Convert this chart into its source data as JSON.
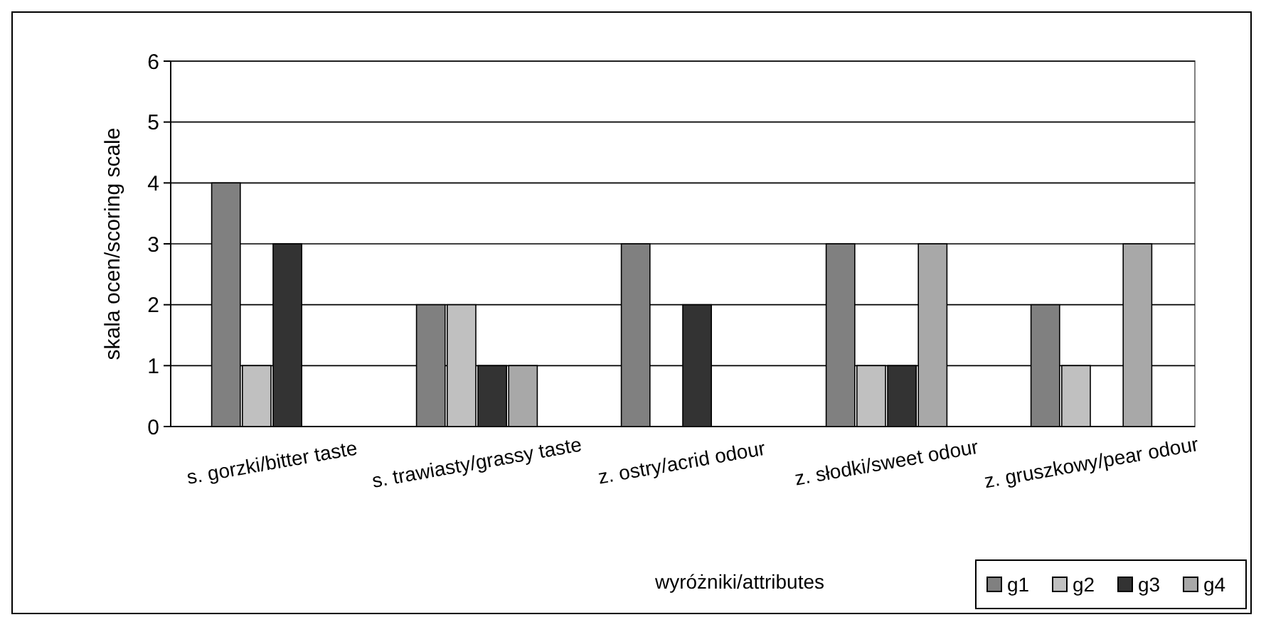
{
  "chart_data": {
    "type": "bar",
    "xlabel": "wyróżniki/attributes",
    "ylabel": "skala ocen/scoring scale",
    "categories": [
      "s. gorzki/bitter taste",
      "s. trawiasty/grassy taste",
      "z. ostry/acrid odour",
      "z. słodki/sweet odour",
      "z. gruszkowy/pear odour"
    ],
    "series": [
      {
        "name": "g1",
        "color": "#808080",
        "values": [
          4,
          2,
          3,
          3,
          2
        ]
      },
      {
        "name": "g2",
        "color": "#c0c0c0",
        "values": [
          1,
          2,
          0,
          1,
          1
        ]
      },
      {
        "name": "g3",
        "color": "#333333",
        "values": [
          3,
          1,
          2,
          1,
          0
        ]
      },
      {
        "name": "g4",
        "color": "#a8a8a8",
        "values": [
          0,
          1,
          0,
          3,
          3
        ]
      }
    ],
    "ylim": [
      0,
      6
    ],
    "yticks": [
      0,
      1,
      2,
      3,
      4,
      5,
      6
    ],
    "grid": "y",
    "legend": "bottom right"
  }
}
